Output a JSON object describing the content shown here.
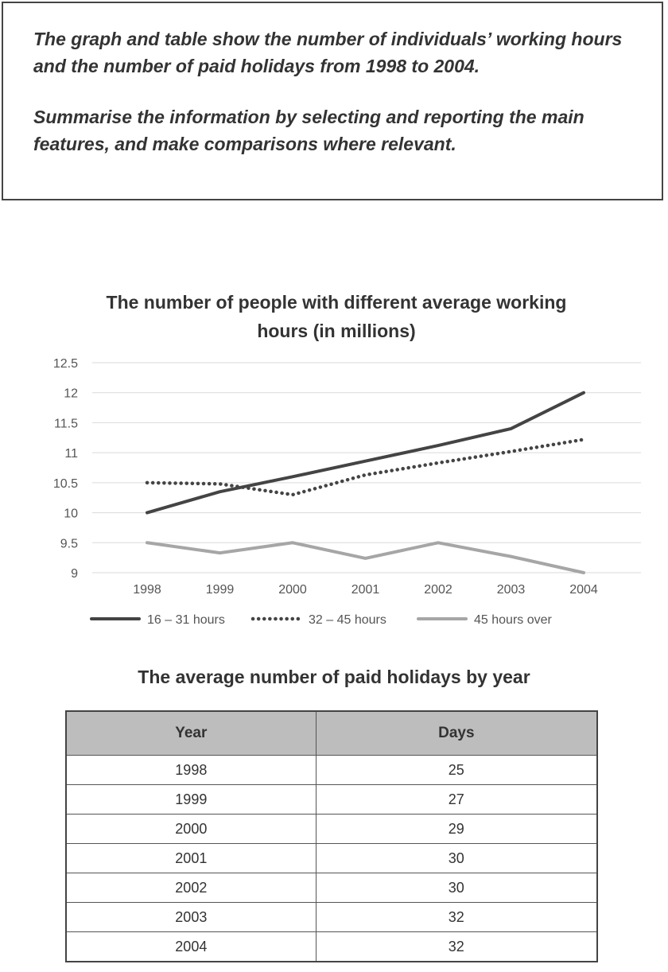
{
  "prompt": {
    "line1": "The graph and table show the number of individuals’ working hours and the number of paid holidays from 1998 to 2004.",
    "line2": "Summarise the information by selecting and reporting the main features, and make comparisons where relevant."
  },
  "chart_data": [
    {
      "type": "line",
      "title": "The number of people with different average working hours (in millions)",
      "xlabel": "",
      "ylabel": "",
      "categories": [
        "1998",
        "1999",
        "2000",
        "2001",
        "2002",
        "2003",
        "2004"
      ],
      "y_ticks": [
        "9",
        "9.5",
        "10",
        "10.5",
        "11",
        "11.5",
        "12",
        "12.5"
      ],
      "ylim": [
        9,
        12.5
      ],
      "grid": true,
      "legend": "bottom",
      "series": [
        {
          "name": "16 – 31 hours",
          "values": [
            10.0,
            10.35,
            10.6,
            10.86,
            11.12,
            11.4,
            12.0
          ],
          "color": "#444444",
          "style": "solid"
        },
        {
          "name": "32 – 45 hours",
          "values": [
            10.5,
            10.48,
            10.3,
            10.63,
            10.83,
            11.02,
            11.22
          ],
          "color": "#444444",
          "style": "dotted"
        },
        {
          "name": "45 hours over",
          "values": [
            9.5,
            9.33,
            9.5,
            9.24,
            9.5,
            9.27,
            9.0
          ],
          "color": "#a6a6a6",
          "style": "solid"
        }
      ]
    },
    {
      "type": "table",
      "title": "The average number of paid holidays by year",
      "columns": [
        "Year",
        "Days"
      ],
      "rows": [
        [
          "1998",
          "25"
        ],
        [
          "1999",
          "27"
        ],
        [
          "2000",
          "29"
        ],
        [
          "2001",
          "30"
        ],
        [
          "2002",
          "30"
        ],
        [
          "2003",
          "32"
        ],
        [
          "2004",
          "32"
        ]
      ]
    }
  ]
}
